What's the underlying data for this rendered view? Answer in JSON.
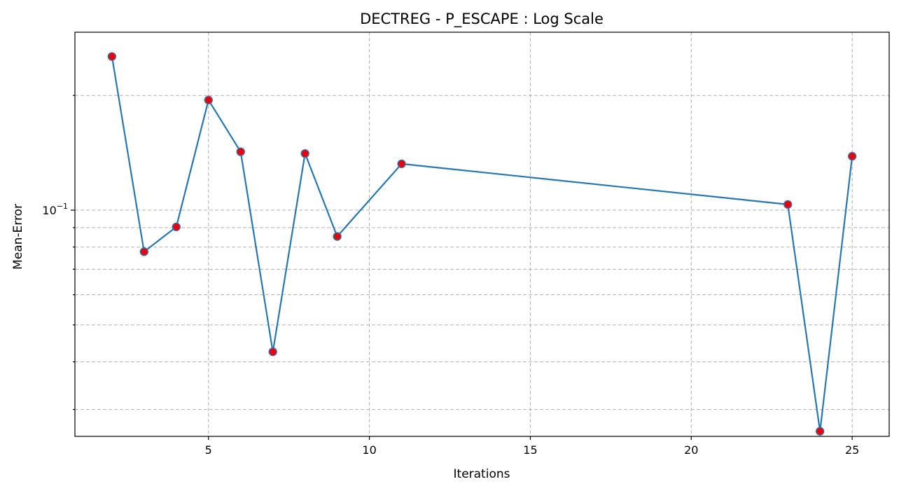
{
  "chart_data": {
    "type": "line",
    "title": "DECTREG - P_ESCAPE : Log Scale",
    "xlabel": "Iterations",
    "ylabel": "Mean-Error",
    "yscale": "log",
    "grid": true,
    "xlim": [
      0.85,
      26.15
    ],
    "ylim": [
      0.0255,
      0.293
    ],
    "x_ticks": [
      5,
      10,
      15,
      20,
      25
    ],
    "y_major_ticks": [
      {
        "value": 0.1,
        "base": "10",
        "exponent": "−1"
      }
    ],
    "y_minor_ticks": [
      0.03,
      0.04,
      0.05,
      0.06,
      0.07,
      0.08,
      0.09,
      0.2
    ],
    "line_color": "#2877b0",
    "marker_face_color": "#e8000b",
    "marker_edge_color": "#4a6fa5",
    "series": [
      {
        "x": [
          2,
          3,
          4,
          5,
          6,
          7,
          8,
          9,
          11,
          23,
          24,
          25
        ],
        "y": [
          0.253,
          0.0778,
          0.0904,
          0.1945,
          0.1423,
          0.0425,
          0.1408,
          0.0853,
          0.1323,
          0.1035,
          0.0263,
          0.1385
        ]
      }
    ]
  }
}
